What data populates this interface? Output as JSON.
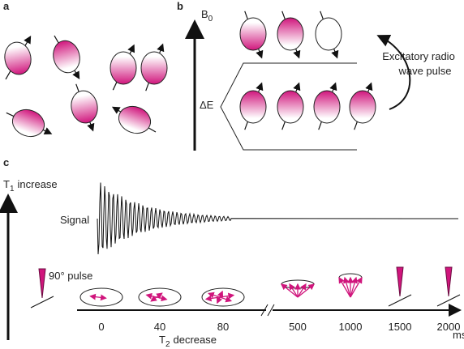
{
  "panels": {
    "a": {
      "label": "a"
    },
    "b": {
      "label": "b",
      "axis_label": "B",
      "axis_subscript": "0",
      "energy_label": "ΔE",
      "pulse_label_lines": [
        "Excitatory radio",
        "wave pulse"
      ]
    },
    "c": {
      "label": "c",
      "y_axis_label": "T",
      "y_axis_subscript": "1",
      "y_axis_suffix": "increase",
      "signal_label": "Signal",
      "pulse_label": "90° pulse",
      "time_labels": [
        "0",
        "40",
        "80",
        "500",
        "1000",
        "1500",
        "2000"
      ],
      "time_unit": "ms",
      "x_axis_label": "T",
      "x_axis_subscript": "2",
      "x_axis_suffix": "decrease"
    }
  }
}
